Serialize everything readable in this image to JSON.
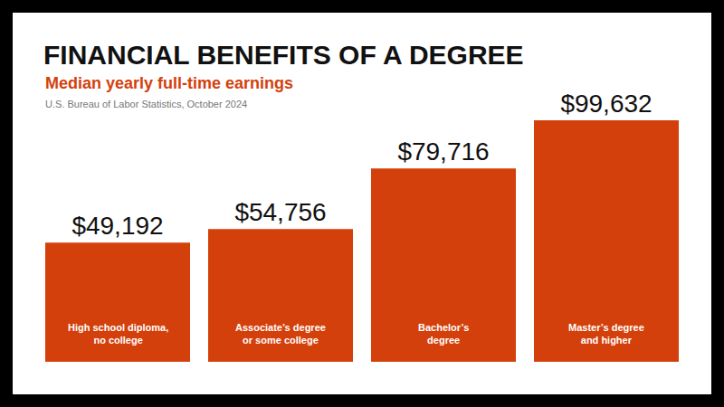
{
  "chart_data": {
    "type": "bar",
    "title": "FINANCIAL BENEFITS OF A DEGREE",
    "subtitle": "Median yearly full-time earnings",
    "source": "U.S. Bureau of Labor Statistics, October 2024",
    "categories": [
      "High school diploma,\nno college",
      "Associate’s degree\nor some college",
      "Bachelor’s\ndegree",
      "Master’s degree\nand higher"
    ],
    "values": [
      49192,
      54756,
      79716,
      99632
    ],
    "value_labels": [
      "$49,192",
      "$54,756",
      "$79,716",
      "$99,632"
    ],
    "color": "#d4400b",
    "ylim": [
      0,
      99632
    ],
    "grid": false,
    "data_labels": true,
    "tick_labels": false
  }
}
